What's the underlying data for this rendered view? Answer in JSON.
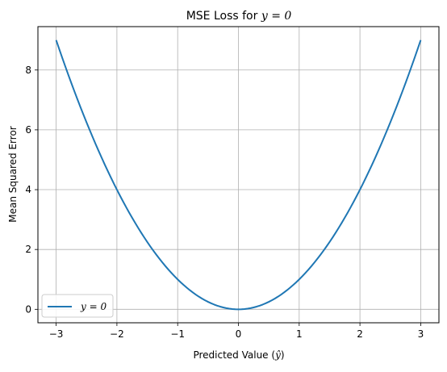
{
  "chart_data": {
    "type": "line",
    "title_prefix": "MSE Loss for ",
    "title_math": "y = 0",
    "xlabel_prefix": "Predicted Value (",
    "xlabel_math": "ŷ",
    "xlabel_suffix": ")",
    "ylabel": "Mean Squared Error",
    "xlim": [
      -3.3,
      3.3
    ],
    "ylim": [
      -0.45,
      9.45
    ],
    "xticks": [
      -3,
      -2,
      -1,
      0,
      1,
      2,
      3
    ],
    "xtick_labels": [
      "−3",
      "−2",
      "−1",
      "0",
      "1",
      "2",
      "3"
    ],
    "yticks": [
      0,
      2,
      4,
      6,
      8
    ],
    "ytick_labels": [
      "0",
      "2",
      "4",
      "6",
      "8"
    ],
    "grid": true,
    "legend_placement": "lower-left",
    "series": [
      {
        "name": "y = 0",
        "color": "#1f77b4",
        "function": "x^2",
        "x": [
          -3,
          -2.5,
          -2,
          -1.5,
          -1,
          -0.5,
          0,
          0.5,
          1,
          1.5,
          2,
          2.5,
          3
        ],
        "y": [
          9,
          6.25,
          4,
          2.25,
          1,
          0.25,
          0,
          0.25,
          1,
          2.25,
          4,
          6.25,
          9
        ]
      }
    ]
  }
}
